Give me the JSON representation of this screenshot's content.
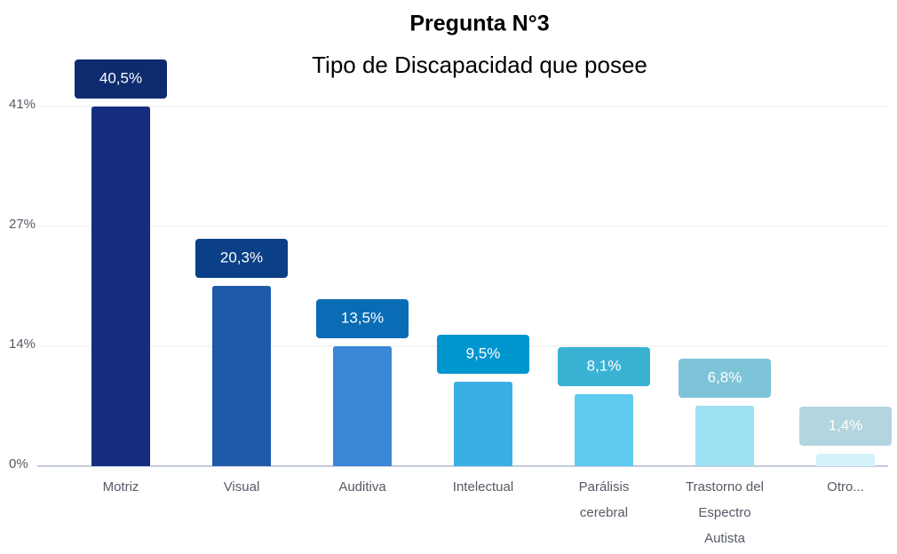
{
  "chart_data": {
    "type": "bar",
    "title": "Pregunta N°3",
    "subtitle": "Tipo de Discapacidad que posee",
    "categories": [
      [
        "Motriz"
      ],
      [
        "Visual"
      ],
      [
        "Auditiva"
      ],
      [
        "Intelectual"
      ],
      [
        "Parálisis",
        "cerebral"
      ],
      [
        "Trastorno del",
        "Espectro",
        "Autista"
      ],
      [
        "Otro..."
      ]
    ],
    "values": [
      40.5,
      20.3,
      13.5,
      9.5,
      8.1,
      6.8,
      1.4
    ],
    "value_labels": [
      "40,5%",
      "20,3%",
      "13,5%",
      "9,5%",
      "8,1%",
      "6,8%",
      "1,4%"
    ],
    "colors": [
      "#142d7e",
      "#1f5aa8",
      "#3a87d6",
      "#3aaee6",
      "#5fcaef",
      "#9de0f4",
      "#d4f3fb"
    ],
    "label_colors": [
      "#0d2b6e",
      "#0b3f86",
      "#0b6cb6",
      "#0096d0",
      "#3ab2d4",
      "#7ec4d8",
      "#b2d5df"
    ],
    "ylim": [
      0,
      40.5
    ],
    "yticks": [
      {
        "value": 0,
        "label": "0%"
      },
      {
        "value": 13.5,
        "label": "14%"
      },
      {
        "value": 27,
        "label": "27%"
      },
      {
        "value": 40.5,
        "label": "41%"
      }
    ],
    "grid": true
  }
}
